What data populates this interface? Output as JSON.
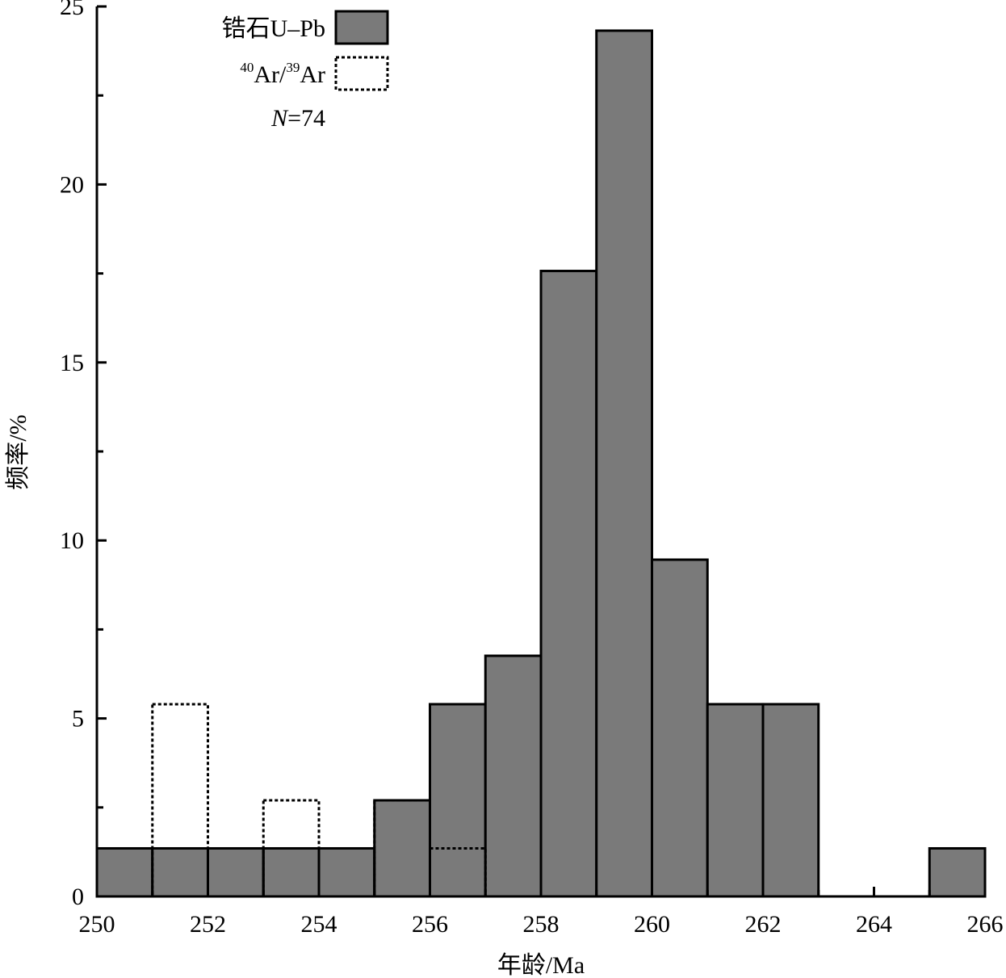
{
  "chart_data": {
    "type": "bar",
    "title": "",
    "xlabel": "年龄/Ma",
    "ylabel": "频率/%",
    "xlim": [
      250,
      266
    ],
    "ylim": [
      0,
      25
    ],
    "x_ticks": [
      "250",
      "252",
      "254",
      "256",
      "258",
      "260",
      "262",
      "264",
      "266"
    ],
    "y_ticks": [
      "0",
      "5",
      "10",
      "15",
      "20",
      "25"
    ],
    "grid": false,
    "legend_position": "top-left",
    "sample_size_label": {
      "italic": "N",
      "rest": "=74"
    },
    "series": [
      {
        "name": "锆石U–Pb",
        "style": "solid-fill",
        "color": "#7a7a7a",
        "bins": [
          {
            "x0": 250,
            "x1": 251,
            "value": 1.35
          },
          {
            "x0": 251,
            "x1": 252,
            "value": 1.35
          },
          {
            "x0": 252,
            "x1": 253,
            "value": 1.35
          },
          {
            "x0": 253,
            "x1": 254,
            "value": 1.35
          },
          {
            "x0": 254,
            "x1": 255,
            "value": 1.35
          },
          {
            "x0": 255,
            "x1": 256,
            "value": 2.7
          },
          {
            "x0": 256,
            "x1": 257,
            "value": 5.4
          },
          {
            "x0": 257,
            "x1": 258,
            "value": 6.76
          },
          {
            "x0": 258,
            "x1": 259,
            "value": 17.57
          },
          {
            "x0": 259,
            "x1": 260,
            "value": 24.32
          },
          {
            "x0": 260,
            "x1": 261,
            "value": 9.46
          },
          {
            "x0": 261,
            "x1": 262,
            "value": 5.4
          },
          {
            "x0": 262,
            "x1": 263,
            "value": 5.4
          },
          {
            "x0": 263,
            "x1": 264,
            "value": 0
          },
          {
            "x0": 264,
            "x1": 265,
            "value": 0
          },
          {
            "x0": 265,
            "x1": 266,
            "value": 1.35
          }
        ]
      },
      {
        "name": "40Ar/39Ar",
        "name_parts": {
          "sup1": "40",
          "main1": "Ar/",
          "sup2": "39",
          "main2": "Ar"
        },
        "style": "dotted-outline",
        "color": "#000000",
        "bins": [
          {
            "x0": 251,
            "x1": 252,
            "value": 5.4
          },
          {
            "x0": 252,
            "x1": 253,
            "value": 1.35
          },
          {
            "x0": 253,
            "x1": 254,
            "value": 2.7
          },
          {
            "x0": 254,
            "x1": 255,
            "value": 1.35
          },
          {
            "x0": 255,
            "x1": 256,
            "value": 2.7
          },
          {
            "x0": 256,
            "x1": 257,
            "value": 1.35
          }
        ]
      }
    ]
  }
}
